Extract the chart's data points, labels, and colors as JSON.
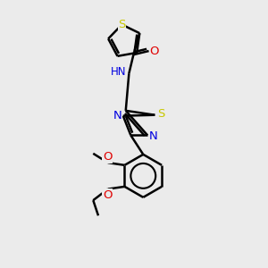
{
  "background_color": "#ebebeb",
  "bond_color": "#000000",
  "bond_width": 1.8,
  "atom_colors": {
    "S": "#c8c800",
    "N": "#0000e0",
    "O": "#e00000",
    "H": "#008080",
    "C": "#000000"
  },
  "font_size": 8.5,
  "fig_width": 3.0,
  "fig_height": 3.0,
  "dpi": 100
}
